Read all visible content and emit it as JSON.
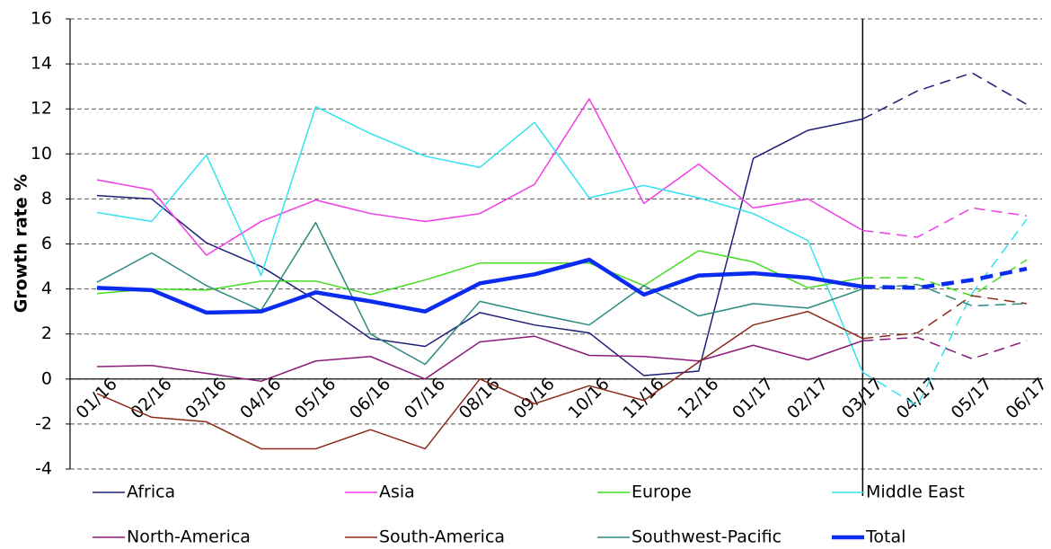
{
  "chart_data": {
    "type": "line",
    "y_label": "Growth rate %",
    "categories": [
      "01/16",
      "02/16",
      "03/16",
      "04/16",
      "05/16",
      "06/16",
      "07/16",
      "08/16",
      "09/16",
      "10/16",
      "11/16",
      "12/16",
      "01/17",
      "02/17",
      "03/17",
      "04/17",
      "05/17",
      "06/17"
    ],
    "ylim": [
      -4,
      16
    ],
    "yticks": [
      -4,
      -2,
      0,
      2,
      4,
      6,
      8,
      10,
      12,
      14,
      16
    ],
    "grid": true,
    "vline": "03/17",
    "legend": "bottom",
    "series": [
      {
        "name": "Africa",
        "color": "#1f1f7a",
        "values": [
          8.15,
          8.0,
          6.05,
          5.0,
          3.5,
          1.8,
          1.45,
          2.95,
          2.4,
          2.05,
          0.15,
          0.35,
          9.8,
          11.05,
          11.55,
          12.8,
          13.6,
          12.2
        ]
      },
      {
        "name": "Asia",
        "color": "#f03ce6",
        "values": [
          8.85,
          8.4,
          5.5,
          7.0,
          7.95,
          7.35,
          7.0,
          7.35,
          8.65,
          12.45,
          7.8,
          9.55,
          7.6,
          8.0,
          6.6,
          6.3,
          7.6,
          7.25
        ]
      },
      {
        "name": "Europe",
        "color": "#44dd22",
        "values": [
          3.8,
          4.0,
          3.95,
          4.35,
          4.35,
          3.75,
          4.4,
          5.15,
          5.15,
          5.15,
          4.15,
          5.7,
          5.2,
          4.05,
          4.5,
          4.5,
          3.7,
          5.3
        ]
      },
      {
        "name": "Middle East",
        "color": "#33e2f0",
        "values": [
          7.4,
          7.0,
          9.95,
          4.6,
          12.1,
          10.9,
          9.9,
          9.4,
          11.4,
          8.05,
          8.6,
          8.05,
          7.35,
          6.15,
          0.3,
          -1.2,
          3.8,
          7.1
        ]
      },
      {
        "name": "North-America",
        "color": "#8b1a7a",
        "values": [
          0.55,
          0.6,
          0.25,
          -0.1,
          0.8,
          1.0,
          0.0,
          1.65,
          1.9,
          1.05,
          1.0,
          0.8,
          1.5,
          0.85,
          1.7,
          1.85,
          0.9,
          1.7
        ]
      },
      {
        "name": "South-America",
        "color": "#8b2a1a",
        "values": [
          -0.65,
          -1.7,
          -1.9,
          -3.1,
          -3.1,
          -2.25,
          -3.1,
          0.0,
          -1.1,
          -0.3,
          -0.95,
          0.75,
          2.4,
          3.0,
          1.8,
          2.05,
          3.7,
          3.35
        ]
      },
      {
        "name": "Southwest-Pacific",
        "color": "#2a8a80",
        "values": [
          4.3,
          5.6,
          4.15,
          3.05,
          6.95,
          2.0,
          0.65,
          3.45,
          2.9,
          2.4,
          4.15,
          2.8,
          3.35,
          3.15,
          4.0,
          4.2,
          3.25,
          3.35
        ]
      },
      {
        "name": "Total",
        "color": "#0a2cf0",
        "bold": true,
        "values": [
          4.05,
          3.95,
          2.95,
          3.0,
          3.85,
          3.45,
          3.0,
          4.25,
          4.65,
          5.3,
          3.75,
          4.6,
          4.7,
          4.5,
          4.1,
          4.05,
          4.4,
          4.9
        ]
      }
    ]
  }
}
